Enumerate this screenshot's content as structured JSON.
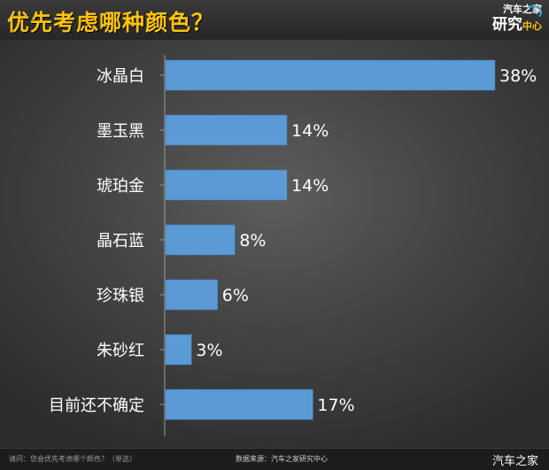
{
  "header": {
    "title": "优先考虑哪种颜色？",
    "logo_line1": "汽车之家",
    "logo_line2": "研究",
    "logo_line2_small": "中心"
  },
  "footer": {
    "question": "请问：您会优先考虑哪个颜色？（单选）",
    "source": "数据来源：汽车之家研究中心",
    "watermark": "汽车之家"
  },
  "colors": {
    "bar": "#5b9bd5",
    "title": "#ffc20e",
    "text": "#ffffff"
  },
  "chart_data": {
    "type": "bar",
    "orientation": "horizontal",
    "title": "优先考虑哪种颜色？",
    "categories": [
      "冰晶白",
      "墨玉黑",
      "琥珀金",
      "晶石蓝",
      "珍珠银",
      "朱砂红",
      "目前还不确定"
    ],
    "values": [
      38,
      14,
      14,
      8,
      6,
      3,
      17
    ],
    "value_labels": [
      "38%",
      "14%",
      "14%",
      "8%",
      "6%",
      "3%",
      "17%"
    ],
    "xlim": [
      0,
      38
    ],
    "grid": false,
    "legend": "none"
  }
}
